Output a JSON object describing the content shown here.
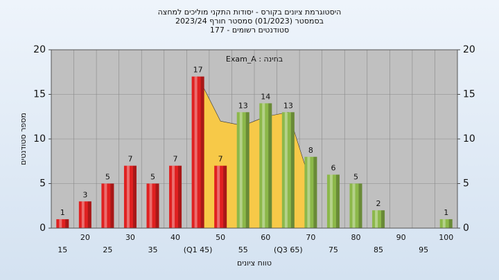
{
  "chart_data": {
    "type": "bar",
    "title": [
      "היסטוגרמת ציונים בקורס - יסודות התקני מוליכים למחצה",
      "בסמסטר  (01/2023)  סמסטר חורף 2023/24",
      "סטודנטים רשומים - 177"
    ],
    "annotation": "בחינה : Exam_A",
    "xlabel": "טווח ציונים",
    "ylabel": "מספר סטודנטים",
    "categories": [
      "15",
      "20",
      "25",
      "30",
      "35",
      "40",
      "(Q1 45)",
      "50",
      "55",
      "60",
      "(Q3 65)",
      "70",
      "75",
      "80",
      "85",
      "90",
      "95",
      "100"
    ],
    "values": [
      1,
      3,
      5,
      7,
      5,
      7,
      17,
      7,
      13,
      14,
      13,
      8,
      6,
      5,
      2,
      0,
      0,
      1
    ],
    "colors": [
      "#e02020",
      "#e02020",
      "#e02020",
      "#e02020",
      "#e02020",
      "#e02020",
      "#e02020",
      "#e02020",
      "#8cb84a",
      "#8cb84a",
      "#8cb84a",
      "#8cb84a",
      "#8cb84a",
      "#8cb84a",
      "#8cb84a",
      "#8cb84a",
      "#8cb84a",
      "#8cb84a"
    ],
    "overlay": {
      "color": "#f7c948",
      "x": [
        45,
        50,
        55,
        60,
        65,
        70
      ],
      "values": [
        17,
        12,
        11.5,
        12.5,
        13,
        5
      ]
    },
    "xstart": 15,
    "xstep": 5,
    "ylim": [
      0,
      20
    ],
    "yticks": [
      0,
      5,
      10,
      15,
      20
    ],
    "y2lim": [
      0,
      20
    ],
    "y2ticks": [
      0,
      5,
      10,
      15,
      20
    ],
    "grid": true
  }
}
